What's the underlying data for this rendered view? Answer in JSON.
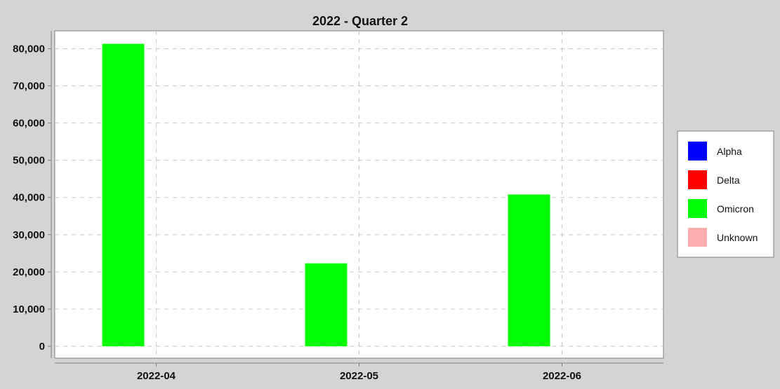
{
  "chart_data": {
    "type": "bar",
    "title": "2022 - Quarter 2",
    "xlabel": "",
    "ylabel": "",
    "categories": [
      "2022-04",
      "2022-05",
      "2022-06"
    ],
    "series": [
      {
        "name": "Alpha",
        "color": "#0000ff",
        "values": [
          0,
          0,
          0
        ]
      },
      {
        "name": "Delta",
        "color": "#ff0000",
        "values": [
          0,
          0,
          0
        ]
      },
      {
        "name": "Omicron",
        "color": "#00ff00",
        "values": [
          81300,
          22300,
          40800
        ]
      },
      {
        "name": "Unknown",
        "color": "#ffafaf",
        "values": [
          0,
          0,
          0
        ]
      }
    ],
    "yticks": [
      0,
      10000,
      20000,
      30000,
      40000,
      50000,
      60000,
      70000,
      80000
    ],
    "ylim": [
      -3200,
      84800
    ],
    "grid": true,
    "legend_position": "right",
    "colors": {
      "background": "#d4d4d4",
      "plot_background": "#ffffff",
      "gridline": "#c8c8c8",
      "axis": "#808080"
    }
  }
}
